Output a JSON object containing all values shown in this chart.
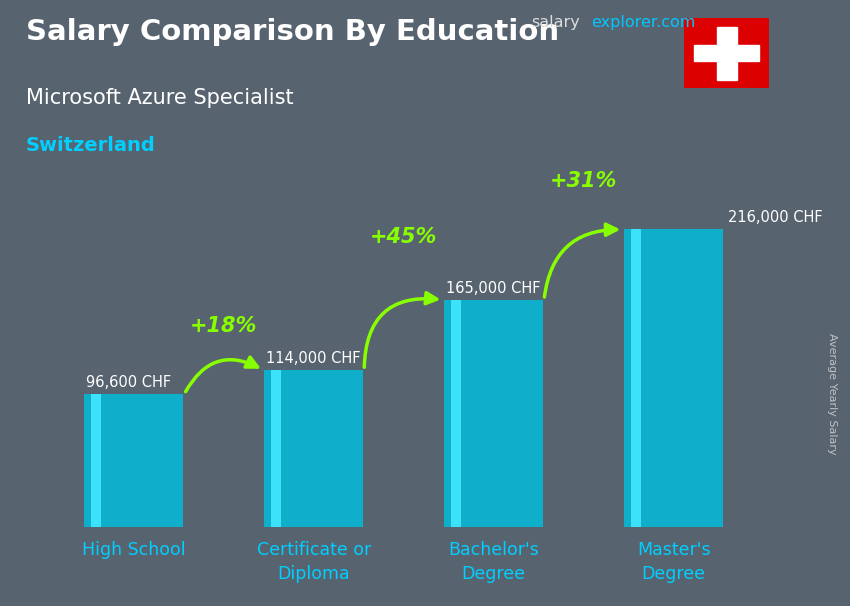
{
  "title": "Salary Comparison By Education",
  "subtitle": "Microsoft Azure Specialist",
  "country": "Switzerland",
  "categories": [
    "High School",
    "Certificate or\nDiploma",
    "Bachelor's\nDegree",
    "Master's\nDegree"
  ],
  "values": [
    96600,
    114000,
    165000,
    216000
  ],
  "value_labels": [
    "96,600 CHF",
    "114,000 CHF",
    "165,000 CHF",
    "216,000 CHF"
  ],
  "pct_labels": [
    "+18%",
    "+45%",
    "+31%"
  ],
  "bar_color": "#00c0e0",
  "bar_alpha": 0.82,
  "bg_color": "#6a7a8a",
  "title_color": "#ffffff",
  "subtitle_color": "#ffffff",
  "country_color": "#00cfff",
  "value_label_color": "#ffffff",
  "pct_label_color": "#88ff00",
  "arrow_color": "#88ff00",
  "ylabel": "Average Yearly Salary",
  "site_salary_color": "#dddddd",
  "site_explorer_color": "#00c8ff",
  "flag_color": "#dd0000",
  "ylim": [
    0,
    255000
  ],
  "bar_width": 0.55,
  "figsize": [
    8.5,
    6.06
  ],
  "dpi": 100
}
